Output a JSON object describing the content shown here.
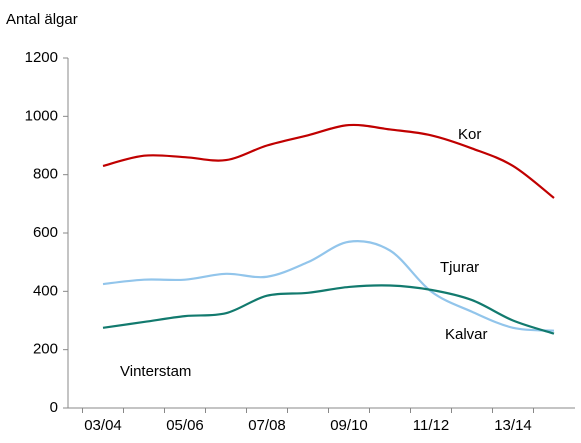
{
  "chart_data": {
    "type": "line",
    "y_label": "Antal älgar",
    "annotation": "Vinterstam",
    "categories": [
      "03/04",
      null,
      "05/06",
      null,
      "07/08",
      null,
      "09/10",
      null,
      "11/12",
      null,
      "13/14",
      null
    ],
    "series": [
      {
        "name": "Kor",
        "color": "#c00000",
        "values": [
          830,
          865,
          860,
          850,
          900,
          935,
          970,
          955,
          935,
          890,
          830,
          720
        ]
      },
      {
        "name": "Tjurar",
        "color": "#92c5eb",
        "values": [
          425,
          440,
          440,
          460,
          450,
          500,
          570,
          540,
          400,
          330,
          275,
          265
        ]
      },
      {
        "name": "Kalvar",
        "color": "#127a6e",
        "values": [
          275,
          295,
          315,
          325,
          385,
          395,
          415,
          420,
          405,
          370,
          300,
          255
        ]
      }
    ],
    "ylim": [
      0,
      1200
    ],
    "yticks": [
      0,
      200,
      400,
      600,
      800,
      1000,
      1200
    ],
    "grid": false
  }
}
